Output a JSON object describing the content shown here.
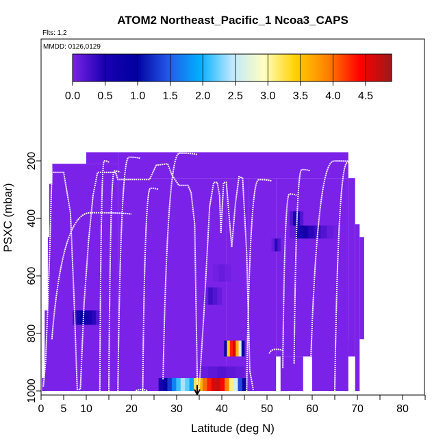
{
  "chart_data": {
    "type": "heatmap",
    "title": "ATOM2 Northeast_Pacific_1 Ncoa3_CAPS",
    "flights_label": "Flts: 1,2",
    "dates_label": "MMDD: 0126,0129",
    "xlabel": "Latitude (deg N)",
    "ylabel": "PSXC (mbar)",
    "xlim": [
      0,
      85
    ],
    "ylim": [
      1000,
      200
    ],
    "y_axis": "inverted",
    "grid": false,
    "x_ticks": [
      0,
      5,
      10,
      20,
      30,
      40,
      50,
      60,
      70,
      80
    ],
    "x_minor_ticks": [
      15,
      25,
      35,
      45,
      55,
      65,
      75,
      85
    ],
    "y_ticks": [
      200,
      400,
      600,
      800,
      1000
    ],
    "colorbar": {
      "placement": "top",
      "range": [
        0,
        4.9
      ],
      "ticks": [
        "0.0",
        "0.5",
        "1.0",
        "1.5",
        "2.0",
        "2.5",
        "3.0",
        "3.5",
        "4.0",
        "4.5"
      ],
      "colors": [
        "#7b22e8",
        "#1a00b0",
        "#0000a0",
        "#2458e8",
        "#00b0ff",
        "#bfe8ff",
        "#ffffc0",
        "#ffd000",
        "#ff8000",
        "#ff0000",
        "#a01818"
      ]
    },
    "background_cells": [
      {
        "x0": 0.2,
        "x1": 1.5,
        "p0": 955,
        "p1": 1000
      },
      {
        "x0": 0.8,
        "x1": 2.2,
        "p0": 720,
        "p1": 1000
      },
      {
        "x0": 1.5,
        "x1": 2.5,
        "p0": 465,
        "p1": 1000
      },
      {
        "x0": 1.8,
        "x1": 3.0,
        "p0": 280,
        "p1": 1000
      },
      {
        "x0": 2.5,
        "x1": 17.0,
        "p0": 210,
        "p1": 1000
      },
      {
        "x0": 10.0,
        "x1": 17.0,
        "p0": 170,
        "p1": 210
      },
      {
        "x0": 17.0,
        "x1": 25.0,
        "p0": 260,
        "p1": 1000
      },
      {
        "x0": 17.0,
        "x1": 68.0,
        "p0": 170,
        "p1": 260
      },
      {
        "x0": 25.0,
        "x1": 41.0,
        "p0": 260,
        "p1": 1000
      },
      {
        "x0": 41.0,
        "x1": 46.0,
        "p0": 260,
        "p1": 1000
      },
      {
        "x0": 46.0,
        "x1": 52.0,
        "p0": 260,
        "p1": 1000
      },
      {
        "x0": 52.0,
        "x1": 60.0,
        "p0": 260,
        "p1": 880
      },
      {
        "x0": 53.0,
        "x1": 58.0,
        "p0": 880,
        "p1": 1000
      },
      {
        "x0": 60.0,
        "x1": 68.0,
        "p0": 260,
        "p1": 1000
      },
      {
        "x0": 68.0,
        "x1": 69.5,
        "p0": 260,
        "p1": 880
      },
      {
        "x0": 69.5,
        "x1": 70.5,
        "p0": 420,
        "p1": 1000
      },
      {
        "x0": 70.5,
        "x1": 71.5,
        "p0": 465,
        "p1": 820
      },
      {
        "x0": 64.0,
        "x1": 68.0,
        "p0": 820,
        "p1": 880
      }
    ],
    "value_cells": [
      {
        "x0": 7.0,
        "x1": 13.0,
        "p0": 720,
        "p1": 770,
        "values": [
          0.3,
          0.6,
          0.9,
          0.7,
          0.5,
          0.4,
          0.2
        ]
      },
      {
        "x0": 26.0,
        "x1": 45.5,
        "p0": 955,
        "p1": 1000,
        "values": [
          0.6,
          0.9,
          1.3,
          1.7,
          2.1,
          2.4,
          2.2,
          1.9,
          3.2,
          3.6,
          4.0,
          4.3,
          4.6,
          4.7,
          4.4,
          3.9,
          3.1,
          2.6,
          1.4,
          0.7
        ]
      },
      {
        "x0": 40.5,
        "x1": 45.0,
        "p0": 825,
        "p1": 880,
        "values": [
          0.6,
          3.4,
          4.3,
          4.6,
          3.6,
          2.6,
          1.0
        ]
      },
      {
        "x0": 55.0,
        "x1": 58.0,
        "p0": 375,
        "p1": 425,
        "values": [
          0.2,
          0.6,
          0.5,
          0.2
        ]
      },
      {
        "x0": 55.0,
        "x1": 66.0,
        "p0": 425,
        "p1": 470,
        "values": [
          0.1,
          0.5,
          0.6,
          0.4,
          0.3,
          0.2,
          0.1,
          0.05
        ]
      },
      {
        "x0": 51.0,
        "x1": 53.0,
        "p0": 470,
        "p1": 515,
        "values": [
          0.1,
          0.4,
          0.2
        ]
      },
      {
        "x0": 36.0,
        "x1": 40.0,
        "p0": 640,
        "p1": 700,
        "values": [
          0.1,
          0.3,
          0.2,
          0.1
        ]
      },
      {
        "x0": 35.0,
        "x1": 45.0,
        "p0": 915,
        "p1": 955,
        "values": [
          0.1,
          0.15,
          0.2,
          0.15,
          0.1
        ]
      },
      {
        "x0": 38.0,
        "x1": 42.0,
        "p0": 560,
        "p1": 620,
        "values": [
          0.05,
          0.1,
          0.05
        ]
      }
    ],
    "flight_track_points": [
      [
        0.5,
        985
      ],
      [
        1.0,
        900
      ],
      [
        1.5,
        700
      ],
      [
        2.0,
        470
      ],
      [
        2.4,
        240
      ],
      [
        5.0,
        240
      ],
      [
        6.5,
        380
      ],
      [
        7.3,
        680
      ],
      [
        8.0,
        995
      ],
      [
        8.7,
        995
      ],
      [
        9.5,
        700
      ],
      [
        10.5,
        480
      ],
      [
        11.5,
        320
      ],
      [
        12.5,
        240
      ],
      [
        16.5,
        240
      ],
      [
        17.0,
        265
      ],
      [
        24.0,
        265
      ],
      [
        25.5,
        215
      ],
      [
        28.0,
        210
      ],
      [
        29.0,
        250
      ],
      [
        30.5,
        285
      ],
      [
        32.5,
        285
      ],
      [
        33.2,
        310
      ],
      [
        34.0,
        420
      ],
      [
        34.6,
        1000
      ],
      [
        35.0,
        990
      ],
      [
        36.0,
        740
      ],
      [
        37.3,
        360
      ],
      [
        38.2,
        275
      ],
      [
        39.0,
        275
      ],
      [
        39.5,
        320
      ],
      [
        39.8,
        450
      ],
      [
        40.4,
        275
      ],
      [
        41.0,
        275
      ],
      [
        41.5,
        370
      ],
      [
        42.2,
        500
      ],
      [
        43.0,
        350
      ],
      [
        43.8,
        255
      ],
      [
        44.6,
        260
      ],
      [
        45.5,
        520
      ],
      [
        46.2,
        930
      ],
      [
        47.0,
        1000
      ]
    ],
    "flight_track_humps": [
      [
        2.4,
        20.0,
        820,
        385
      ],
      [
        13.0,
        15.0,
        1000,
        205
      ],
      [
        15.0,
        17.5,
        1000,
        240
      ],
      [
        17.0,
        22.0,
        1000,
        192
      ],
      [
        21.0,
        23.5,
        1000,
        1000
      ],
      [
        22.5,
        26.0,
        1000,
        300
      ],
      [
        27.0,
        34.5,
        960,
        178
      ],
      [
        45.5,
        51.0,
        1000,
        270
      ],
      [
        50.5,
        53.5,
        870,
        860
      ],
      [
        53.5,
        56.5,
        920,
        320
      ],
      [
        56.0,
        59.5,
        905,
        235
      ],
      [
        59.5,
        70.5,
        1000,
        205
      ],
      [
        65.0,
        70.8,
        1000,
        210
      ]
    ]
  }
}
